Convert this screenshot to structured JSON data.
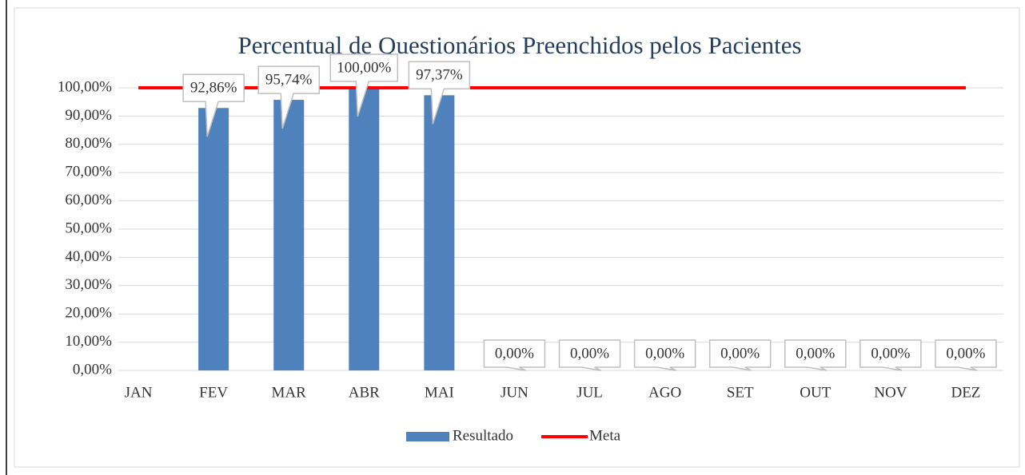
{
  "chart_data": {
    "type": "bar",
    "title": "Percentual de Questionários Preenchidos pelos Pacientes",
    "categories": [
      "JAN",
      "FEV",
      "MAR",
      "ABR",
      "MAI",
      "JUN",
      "JUL",
      "AGO",
      "SET",
      "OUT",
      "NOV",
      "DEZ"
    ],
    "series": [
      {
        "name": "Resultado",
        "type": "bar",
        "color": "#4f81bd",
        "values": [
          null,
          92.86,
          95.74,
          100,
          97.37,
          0,
          0,
          0,
          0,
          0,
          0,
          0
        ],
        "value_labels": [
          null,
          "92,86%",
          "95,74%",
          "100,00%",
          "97,37%",
          "0,00%",
          "0,00%",
          "0,00%",
          "0,00%",
          "0,00%",
          "0,00%",
          "0,00%"
        ]
      },
      {
        "name": "Meta",
        "type": "line",
        "color": "#ff0000",
        "values": [
          100,
          100,
          100,
          100,
          100,
          100,
          100,
          100,
          100,
          100,
          100,
          100
        ]
      }
    ],
    "ylim": [
      0,
      100
    ],
    "yticks": [
      {
        "value": 0,
        "label": "0,00%"
      },
      {
        "value": 10,
        "label": "10,00%"
      },
      {
        "value": 20,
        "label": "20,00%"
      },
      {
        "value": 30,
        "label": "30,00%"
      },
      {
        "value": 40,
        "label": "40,00%"
      },
      {
        "value": 50,
        "label": "50,00%"
      },
      {
        "value": 60,
        "label": "60,00%"
      },
      {
        "value": 70,
        "label": "70,00%"
      },
      {
        "value": 80,
        "label": "80,00%"
      },
      {
        "value": 90,
        "label": "90,00%"
      },
      {
        "value": 100,
        "label": "100,00%"
      }
    ],
    "grid": true,
    "legend": "bottom"
  }
}
